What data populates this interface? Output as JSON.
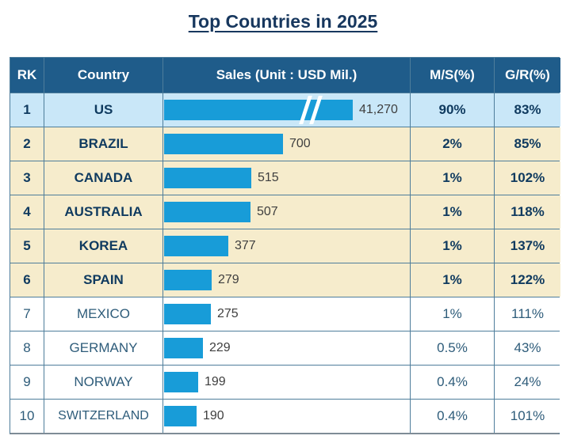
{
  "title": "Top Countries in 2025",
  "table": {
    "headers": {
      "rk": "RK",
      "country": "Country",
      "sales": "Sales (Unit : USD Mil.)",
      "ms": "M/S(%)",
      "gr": "G/R(%)"
    },
    "rows": [
      {
        "rk": "1",
        "country": "US",
        "sales_label": "41,270",
        "ms": "90%",
        "gr": "83%",
        "bar_break": true
      },
      {
        "rk": "2",
        "country": "BRAZIL",
        "sales_label": "700",
        "ms": "2%",
        "gr": "85%"
      },
      {
        "rk": "3",
        "country": "CANADA",
        "sales_label": "515",
        "ms": "1%",
        "gr": "102%"
      },
      {
        "rk": "4",
        "country": "AUSTRALIA",
        "sales_label": "507",
        "ms": "1%",
        "gr": "118%"
      },
      {
        "rk": "5",
        "country": "KOREA",
        "sales_label": "377",
        "ms": "1%",
        "gr": "137%"
      },
      {
        "rk": "6",
        "country": "SPAIN",
        "sales_label": "279",
        "ms": "1%",
        "gr": "122%"
      },
      {
        "rk": "7",
        "country": "MEXICO",
        "sales_label": "275",
        "ms": "1%",
        "gr": "111%"
      },
      {
        "rk": "8",
        "country": "GERMANY",
        "sales_label": "229",
        "ms": "0.5%",
        "gr": "43%"
      },
      {
        "rk": "9",
        "country": "NORWAY",
        "sales_label": "199",
        "ms": "0.4%",
        "gr": "24%"
      },
      {
        "rk": "10",
        "country": "SWITZERLAND",
        "sales_label": "190",
        "ms": "0.4%",
        "gr": "101%"
      }
    ]
  },
  "colors": {
    "title_text": "#17375E",
    "header_bg": "#1F5C8A",
    "header_text": "#FFFFFF",
    "row_rank1_bg": "#C9E7F8",
    "row_top_bg": "#F6ECCC",
    "row_rest_bg": "#FFFFFF",
    "bar_fill": "#189CD8",
    "bold_text": "#0F3A5F",
    "regular_text": "#2E5C7A",
    "bar_label_text": "#3F3F3F",
    "grid_line": "#4E7D9B"
  },
  "chart_data": {
    "type": "bar",
    "orientation": "horizontal",
    "title": "Top Countries in 2025",
    "unit": "USD Mil.",
    "categories": [
      "US",
      "BRAZIL",
      "CANADA",
      "AUSTRALIA",
      "KOREA",
      "SPAIN",
      "MEXICO",
      "GERMANY",
      "NORWAY",
      "SWITZERLAND"
    ],
    "values": [
      41270,
      700,
      515,
      507,
      377,
      279,
      275,
      229,
      199,
      190
    ],
    "series": [
      {
        "name": "Sales (Unit : USD Mil.)",
        "values": [
          41270,
          700,
          515,
          507,
          377,
          279,
          275,
          229,
          199,
          190
        ]
      },
      {
        "name": "M/S(%)",
        "values": [
          90,
          2,
          1,
          1,
          1,
          1,
          1,
          0.5,
          0.4,
          0.4
        ]
      },
      {
        "name": "G/R(%)",
        "values": [
          83,
          85,
          102,
          118,
          137,
          122,
          111,
          43,
          24,
          101
        ]
      }
    ],
    "annotations": [
      "US bar rendered with an axis break (//) because its value is off-scale"
    ],
    "legend_position": "none",
    "grid": false
  }
}
